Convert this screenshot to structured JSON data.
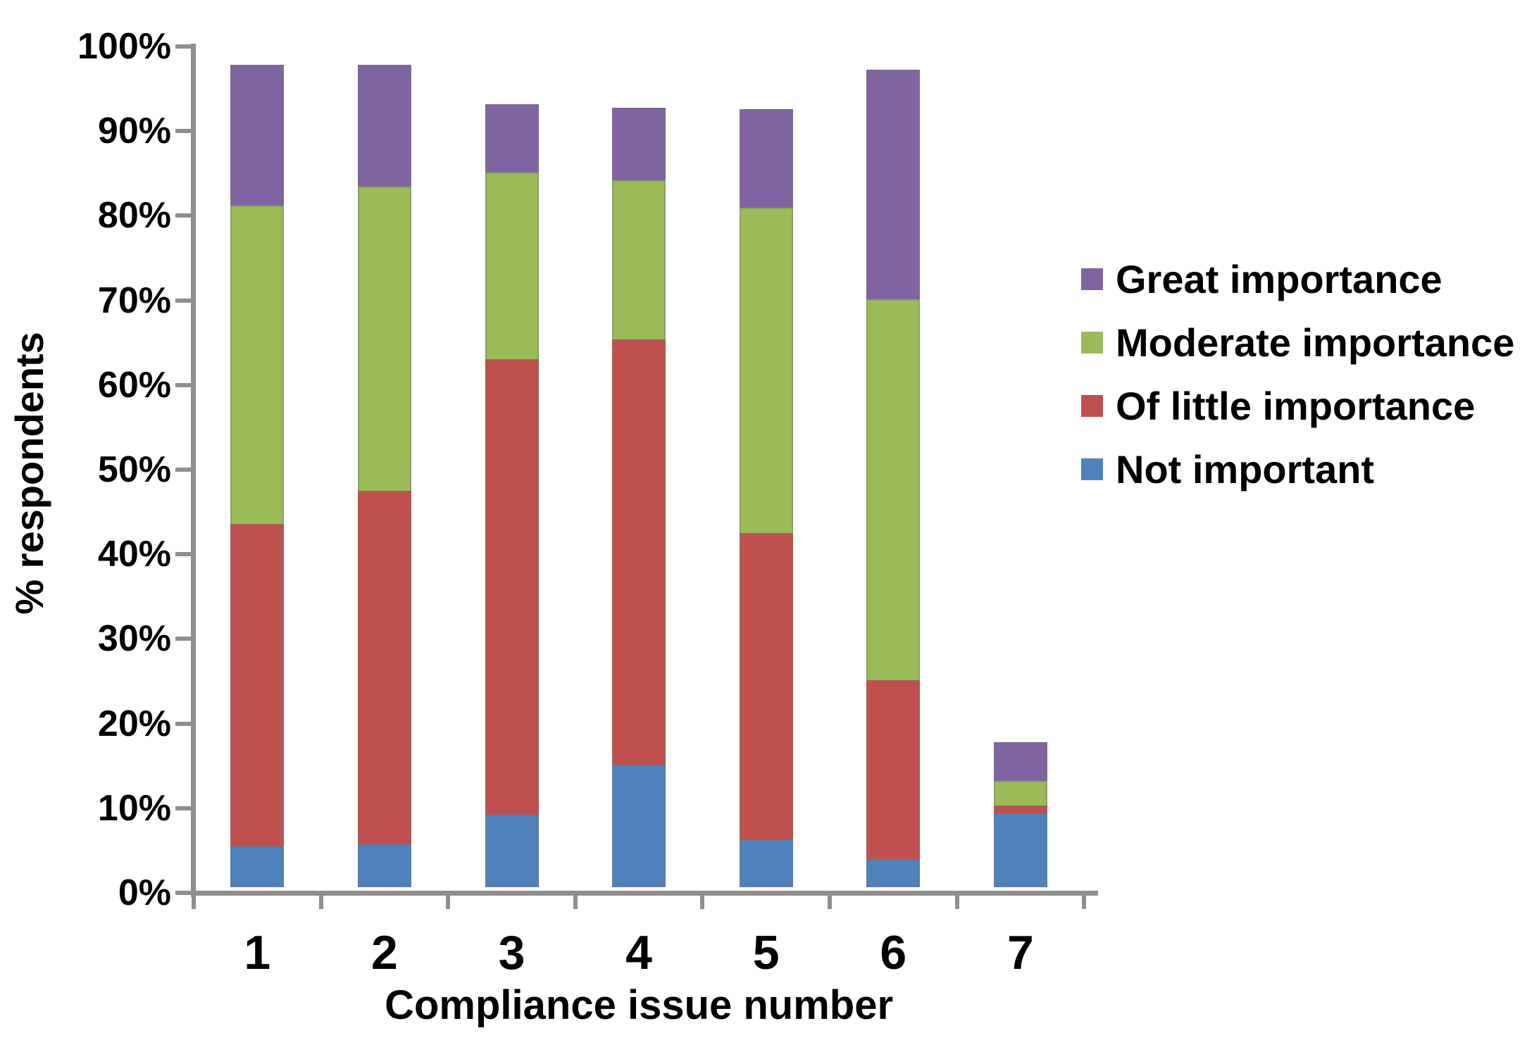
{
  "chart_data": {
    "type": "bar",
    "stacked": true,
    "title": "",
    "xlabel": "Compliance issue number",
    "ylabel": "% respondents",
    "categories": [
      "1",
      "2",
      "3",
      "4",
      "5",
      "6",
      "7"
    ],
    "series": [
      {
        "name": "Not important",
        "color": "#4F81BD",
        "values": [
          4.8,
          5.1,
          8.6,
          14.5,
          5.6,
          3.3,
          8.7
        ]
      },
      {
        "name": "Of little importance",
        "color": "#C0504D",
        "values": [
          38.3,
          41.9,
          54.0,
          50.4,
          36.4,
          21.3,
          1.1
        ]
      },
      {
        "name": "Moderate importance",
        "color": "#9BBB59",
        "values": [
          37.8,
          36.1,
          22.2,
          19.0,
          38.6,
          45.2,
          3.1
        ]
      },
      {
        "name": "Great importance",
        "color": "#8064A2",
        "values": [
          16.8,
          14.6,
          8.2,
          8.7,
          11.8,
          27.3,
          4.7
        ]
      }
    ],
    "bar_totals": [
      97.7,
      97.7,
      93.0,
      92.6,
      92.4,
      97.1,
      17.6
    ],
    "legend_order": [
      "Great importance",
      "Moderate importance",
      "Of little importance",
      "Not important"
    ],
    "legend_position": "right",
    "yticks": [
      "0%",
      "10%",
      "20%",
      "30%",
      "40%",
      "50%",
      "60%",
      "70%",
      "80%",
      "90%",
      "100%"
    ],
    "ylim": [
      0,
      100
    ],
    "grid": false
  },
  "colors": {
    "axis": "#8E8E8E",
    "text": "#000000",
    "background": "#FFFFFF"
  }
}
